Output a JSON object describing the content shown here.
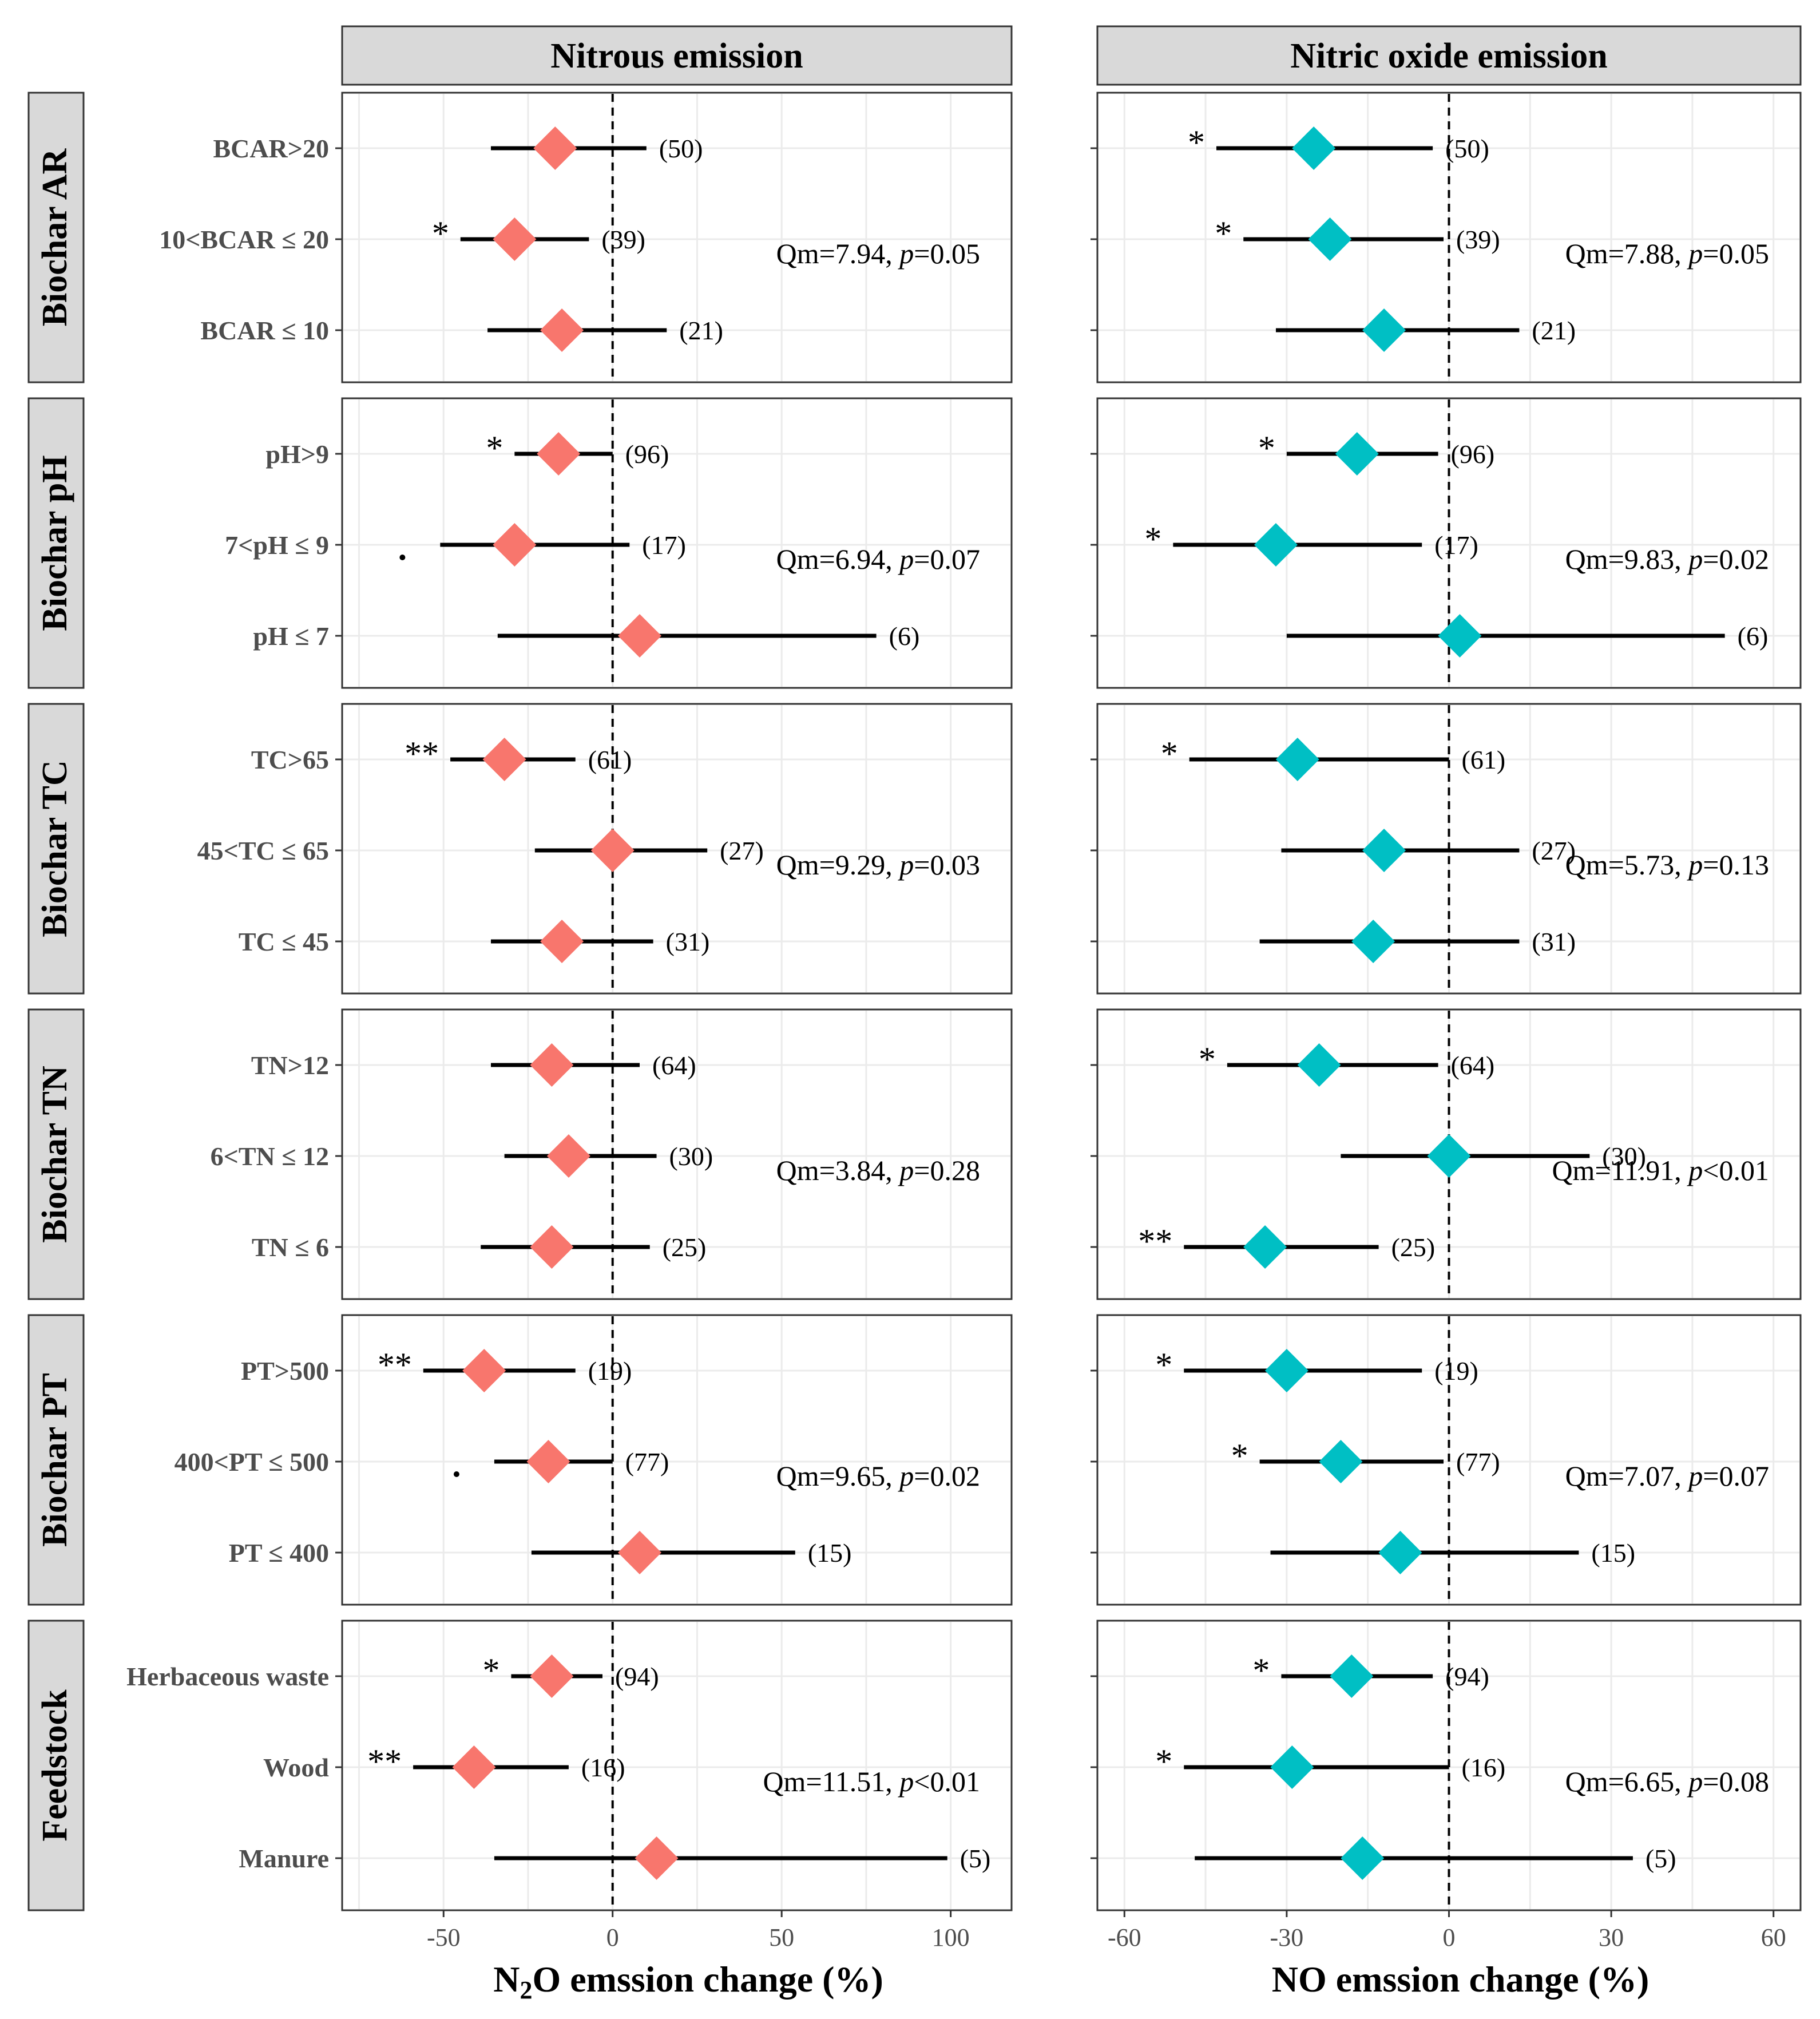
{
  "chart_data": {
    "type": "forest",
    "columns": [
      {
        "title": "Nitrous emission",
        "xlabel_main": "N",
        "xlabel_sub": "2",
        "xlabel_rest": "O emssion change (%)",
        "color": "#F8766D",
        "xlim": [
          -80,
          118
        ],
        "ticks": [
          -50,
          0,
          50,
          100
        ],
        "tick_labels": [
          "-50",
          "0",
          "50",
          "100"
        ]
      },
      {
        "title": "Nitric oxide emission",
        "xlabel_main": "NO emssion change (%)",
        "xlabel_sub": "",
        "xlabel_rest": "",
        "color": "#00BFC4",
        "xlim": [
          -65,
          65
        ],
        "ticks": [
          -60,
          -30,
          0,
          30,
          60
        ],
        "tick_labels": [
          "-60",
          "-30",
          "0",
          "30",
          "60"
        ]
      }
    ],
    "groups": [
      {
        "label": "Biochar AR",
        "categories": [
          "BCAR>20",
          "10<BCAR ≤ 20",
          "BCAR ≤ 10"
        ],
        "stats": [
          "Qm=7.94, ",
          "p",
          "=0.05",
          "Qm=7.88, ",
          "p",
          "=0.05"
        ],
        "panels": [
          {
            "points": [
              {
                "est": -17,
                "lo": -36,
                "hi": 10,
                "n": "(50)",
                "sig": ""
              },
              {
                "est": -29,
                "lo": -45,
                "hi": -7,
                "n": "(39)",
                "sig": "*"
              },
              {
                "est": -15,
                "lo": -37,
                "hi": 16,
                "n": "(21)",
                "sig": ""
              }
            ]
          },
          {
            "points": [
              {
                "est": -25,
                "lo": -43,
                "hi": -3,
                "n": "(50)",
                "sig": "*"
              },
              {
                "est": -22,
                "lo": -38,
                "hi": -1,
                "n": "(39)",
                "sig": "*"
              },
              {
                "est": -12,
                "lo": -32,
                "hi": 13,
                "n": "(21)",
                "sig": ""
              }
            ]
          }
        ]
      },
      {
        "label": "Biochar pH",
        "categories": [
          "pH>9",
          "7<pH ≤ 9",
          "pH ≤ 7"
        ],
        "stats": [
          "Qm=6.94, ",
          "p",
          "=0.07",
          "Qm=9.83, ",
          "p",
          "=0.02"
        ],
        "panels": [
          {
            "points": [
              {
                "est": -16,
                "lo": -29,
                "hi": 0,
                "n": "(96)",
                "sig": "*"
              },
              {
                "est": -29,
                "lo": -51,
                "hi": 5,
                "n": "(17)",
                "sig": "."
              },
              {
                "est": 8,
                "lo": -34,
                "hi": 78,
                "n": "(6)",
                "sig": ""
              }
            ]
          },
          {
            "points": [
              {
                "est": -17,
                "lo": -30,
                "hi": -2,
                "n": "(96)",
                "sig": "*"
              },
              {
                "est": -32,
                "lo": -51,
                "hi": -5,
                "n": "(17)",
                "sig": "*"
              },
              {
                "est": 2,
                "lo": -30,
                "hi": 51,
                "n": "(6)",
                "sig": ""
              }
            ]
          }
        ]
      },
      {
        "label": "Biochar TC",
        "categories": [
          "TC>65",
          "45<TC ≤ 65",
          "TC ≤ 45"
        ],
        "stats": [
          "Qm=9.29, ",
          "p",
          "=0.03",
          "Qm=5.73, ",
          "p",
          "=0.13"
        ],
        "panels": [
          {
            "points": [
              {
                "est": -32,
                "lo": -48,
                "hi": -11,
                "n": "(61)",
                "sig": "**"
              },
              {
                "est": 0,
                "lo": -23,
                "hi": 28,
                "n": "(27)",
                "sig": ""
              },
              {
                "est": -15,
                "lo": -36,
                "hi": 12,
                "n": "(31)",
                "sig": ""
              }
            ]
          },
          {
            "points": [
              {
                "est": -28,
                "lo": -48,
                "hi": 0,
                "n": "(61)",
                "sig": "*"
              },
              {
                "est": -12,
                "lo": -31,
                "hi": 13,
                "n": "(27)",
                "sig": ""
              },
              {
                "est": -14,
                "lo": -35,
                "hi": 13,
                "n": "(31)",
                "sig": ""
              }
            ]
          }
        ]
      },
      {
        "label": "Biochar TN",
        "categories": [
          "TN>12",
          "6<TN ≤ 12",
          "TN ≤ 6"
        ],
        "stats": [
          "Qm=3.84, ",
          "p",
          "=0.28",
          "Qm=11.91, ",
          "p",
          "<0.01"
        ],
        "panels": [
          {
            "points": [
              {
                "est": -18,
                "lo": -36,
                "hi": 8,
                "n": "(64)",
                "sig": ""
              },
              {
                "est": -13,
                "lo": -32,
                "hi": 13,
                "n": "(30)",
                "sig": ""
              },
              {
                "est": -18,
                "lo": -39,
                "hi": 11,
                "n": "(25)",
                "sig": ""
              }
            ]
          },
          {
            "points": [
              {
                "est": -24,
                "lo": -41,
                "hi": -2,
                "n": "(64)",
                "sig": "*"
              },
              {
                "est": 0,
                "lo": -20,
                "hi": 26,
                "n": "(30)",
                "sig": ""
              },
              {
                "est": -34,
                "lo": -49,
                "hi": -13,
                "n": "(25)",
                "sig": "**"
              }
            ]
          }
        ]
      },
      {
        "label": "Biochar PT",
        "categories": [
          "PT>500",
          "400<PT ≤ 500",
          "PT ≤ 400"
        ],
        "stats": [
          "Qm=9.65, ",
          "p",
          "=0.02",
          "Qm=7.07, ",
          "p",
          "=0.07"
        ],
        "panels": [
          {
            "points": [
              {
                "est": -38,
                "lo": -56,
                "hi": -11,
                "n": "(19)",
                "sig": "**"
              },
              {
                "est": -19,
                "lo": -35,
                "hi": 0,
                "n": "(77)",
                "sig": "."
              },
              {
                "est": 8,
                "lo": -24,
                "hi": 54,
                "n": "(15)",
                "sig": ""
              }
            ]
          },
          {
            "points": [
              {
                "est": -30,
                "lo": -49,
                "hi": -5,
                "n": "(19)",
                "sig": "*"
              },
              {
                "est": -20,
                "lo": -35,
                "hi": -1,
                "n": "(77)",
                "sig": "*"
              },
              {
                "est": -9,
                "lo": -33,
                "hi": 24,
                "n": "(15)",
                "sig": ""
              }
            ]
          }
        ]
      },
      {
        "label": "Feedstock",
        "categories": [
          "Herbaceous waste",
          "Wood",
          "Manure"
        ],
        "stats": [
          "Qm=11.51, ",
          "p",
          "<0.01",
          "Qm=6.65, ",
          "p",
          "=0.08"
        ],
        "panels": [
          {
            "points": [
              {
                "est": -18,
                "lo": -30,
                "hi": -3,
                "n": "(94)",
                "sig": "*"
              },
              {
                "est": -41,
                "lo": -59,
                "hi": -13,
                "n": "(16)",
                "sig": "**"
              },
              {
                "est": 13,
                "lo": -35,
                "hi": 99,
                "n": "(5)",
                "sig": ""
              }
            ]
          },
          {
            "points": [
              {
                "est": -18,
                "lo": -31,
                "hi": -3,
                "n": "(94)",
                "sig": "*"
              },
              {
                "est": -29,
                "lo": -49,
                "hi": 0,
                "n": "(16)",
                "sig": "*"
              },
              {
                "est": -16,
                "lo": -47,
                "hi": 34,
                "n": "(5)",
                "sig": ""
              }
            ]
          }
        ]
      }
    ]
  }
}
